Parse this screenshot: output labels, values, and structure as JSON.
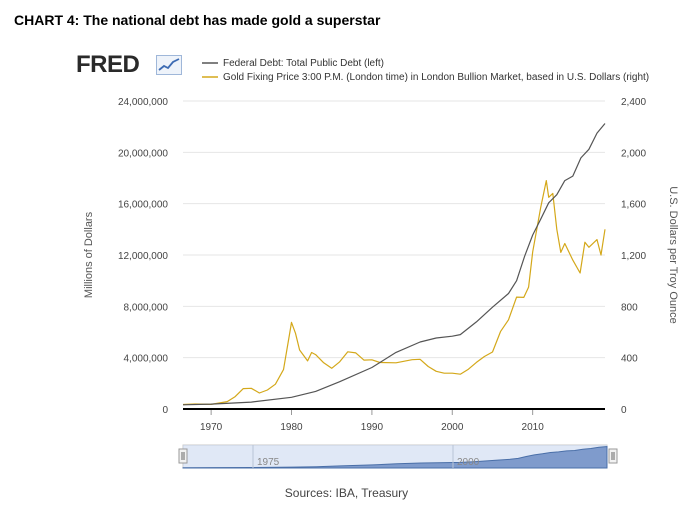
{
  "page_title": "CHART 4: The national debt has made gold a superstar",
  "logo": {
    "text": "FRED"
  },
  "source": "Sources: IBA, Treasury",
  "colors": {
    "debt": "#555555",
    "gold": "#d4a81a",
    "navigator_fill": "#6d8dc4",
    "navigator_mask": "#c7d6ee"
  },
  "chart_data": {
    "type": "line",
    "title": "",
    "xlabel": "",
    "ylabel_left": "Millions of Dollars",
    "ylabel_right": "U.S. Dollars per Troy Ounce",
    "xlim": [
      1966.5,
      2019
    ],
    "ylim_left": [
      0,
      24000000
    ],
    "ylim_right": [
      0,
      2400
    ],
    "x_ticks": [
      1970,
      1980,
      1990,
      2000,
      2010
    ],
    "y_ticks_left": [
      "0",
      "4,000,000",
      "8,000,000",
      "12,000,000",
      "16,000,000",
      "20,000,000",
      "24,000,000"
    ],
    "y_ticks_right": [
      "0",
      "400",
      "800",
      "1,200",
      "1,600",
      "2,000",
      "2,400"
    ],
    "grid": "horizontal",
    "legend_position": "top",
    "navigator_labels": [
      "1975",
      "2000"
    ],
    "series": [
      {
        "name": "Federal Debt: Total Public Debt (left)",
        "axis": "left",
        "x": [
          1966.5,
          1970,
          1975,
          1980,
          1983,
          1986,
          1990,
          1993,
          1996,
          1998,
          2000,
          2001,
          2003,
          2005,
          2007,
          2008,
          2009,
          2010,
          2011,
          2012,
          2013,
          2014,
          2015,
          2016,
          2017,
          2018,
          2019
        ],
        "values": [
          330000,
          380000,
          540000,
          910000,
          1370000,
          2130000,
          3230000,
          4410000,
          5220000,
          5530000,
          5670000,
          5800000,
          6790000,
          7930000,
          9000000,
          10000000,
          11900000,
          13560000,
          14790000,
          16070000,
          16700000,
          17800000,
          18150000,
          19570000,
          20240000,
          21500000,
          22250000
        ]
      },
      {
        "name": "Gold Fixing Price 3:00 P.M. (London time) in London Bullion Market, based in U.S. Dollars (right)",
        "axis": "right",
        "x": [
          1966.5,
          1968,
          1970,
          1972,
          1973,
          1974,
          1975,
          1976,
          1977,
          1978,
          1979,
          1979.8,
          1980,
          1980.5,
          1981,
          1982,
          1982.5,
          1983,
          1984,
          1985,
          1986,
          1987,
          1988,
          1989,
          1990,
          1991,
          1993,
          1995,
          1996,
          1997,
          1998,
          1999,
          2000,
          2001,
          2002,
          2003,
          2004,
          2005,
          2006,
          2007,
          2008,
          2008.9,
          2009.5,
          2010,
          2011,
          2011.7,
          2012,
          2012.5,
          2013,
          2013.5,
          2014,
          2015,
          2015.9,
          2016.5,
          2017,
          2018,
          2018.5,
          2019
        ],
        "values": [
          35,
          39,
          36,
          58,
          97,
          159,
          161,
          125,
          148,
          193,
          307,
          600,
          675,
          590,
          460,
          375,
          440,
          424,
          360,
          317,
          368,
          446,
          437,
          381,
          383,
          362,
          360,
          384,
          387,
          331,
          294,
          279,
          279,
          271,
          310,
          363,
          409,
          444,
          603,
          695,
          872,
          870,
          950,
          1225,
          1570,
          1780,
          1650,
          1680,
          1400,
          1220,
          1290,
          1160,
          1060,
          1300,
          1260,
          1320,
          1200,
          1400
        ]
      }
    ]
  }
}
